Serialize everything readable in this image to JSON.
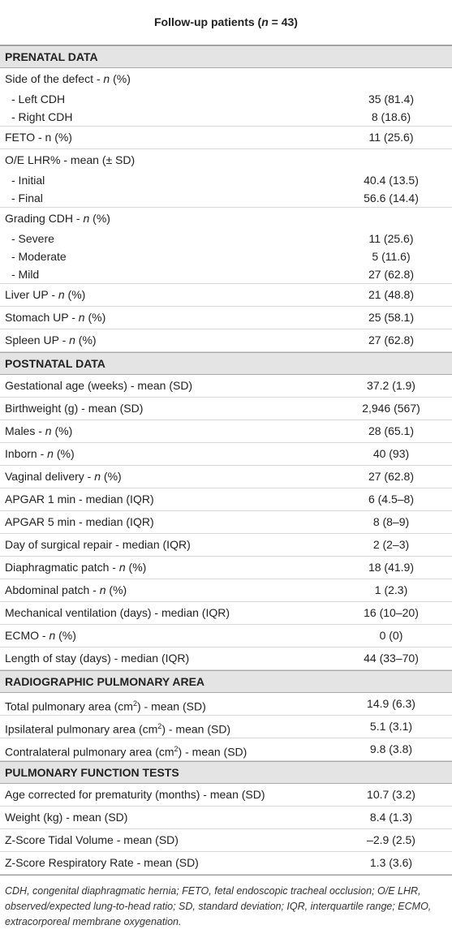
{
  "header": {
    "title": [
      "Follow-up patients (",
      {
        "italic": "n"
      },
      " = 43)"
    ]
  },
  "sections": [
    {
      "title": "PRENATAL DATA",
      "rows": [
        {
          "label": [
            "Side of the defect - ",
            {
              "italic": "n"
            },
            " (%)"
          ],
          "items": [
            {
              "label": "- Left CDH",
              "value": "35 (81.4)"
            },
            {
              "label": "- Right CDH",
              "value": "8 (18.6)"
            }
          ]
        },
        {
          "label": "FETO - n (%)",
          "value": "11 (25.6)"
        },
        {
          "label": "O/E LHR% - mean (± SD)",
          "items": [
            {
              "label": "- Initial",
              "value": "40.4 (13.5)"
            },
            {
              "label": "- Final",
              "value": "56.6 (14.4)"
            }
          ]
        },
        {
          "label": [
            "Grading CDH - ",
            {
              "italic": "n"
            },
            " (%)"
          ],
          "items": [
            {
              "label": "- Severe",
              "value": "11 (25.6)"
            },
            {
              "label": "- Moderate",
              "value": "5 (11.6)"
            },
            {
              "label": "- Mild",
              "value": "27 (62.8)"
            }
          ]
        },
        {
          "label": [
            "Liver UP - ",
            {
              "italic": "n"
            },
            " (%)"
          ],
          "value": "21 (48.8)"
        },
        {
          "label": [
            "Stomach UP - ",
            {
              "italic": "n"
            },
            " (%)"
          ],
          "value": "25 (58.1)"
        },
        {
          "label": [
            "Spleen UP - ",
            {
              "italic": "n"
            },
            " (%)"
          ],
          "value": "27 (62.8)"
        }
      ]
    },
    {
      "title": "POSTNATAL DATA",
      "rows": [
        {
          "label": "Gestational age (weeks) - mean (SD)",
          "value": "37.2 (1.9)"
        },
        {
          "label": "Birthweight (g) - mean (SD)",
          "value": "2,946 (567)"
        },
        {
          "label": [
            "Males - ",
            {
              "italic": "n"
            },
            " (%)"
          ],
          "value": "28 (65.1)"
        },
        {
          "label": [
            "Inborn - ",
            {
              "italic": "n"
            },
            " (%)"
          ],
          "value": "40 (93)"
        },
        {
          "label": [
            "Vaginal delivery - ",
            {
              "italic": "n"
            },
            " (%)"
          ],
          "value": "27 (62.8)"
        },
        {
          "label": "APGAR 1 min - median (IQR)",
          "value": "6 (4.5–8)"
        },
        {
          "label": "APGAR 5 min - median (IQR)",
          "value": "8 (8–9)"
        },
        {
          "label": "Day of surgical repair - median (IQR)",
          "value": "2 (2–3)"
        },
        {
          "label": [
            "Diaphragmatic patch - ",
            {
              "italic": "n"
            },
            " (%)"
          ],
          "value": "18 (41.9)"
        },
        {
          "label": [
            "Abdominal patch - ",
            {
              "italic": "n"
            },
            " (%)"
          ],
          "value": "1 (2.3)"
        },
        {
          "label": "Mechanical ventilation (days) - median (IQR)",
          "value": "16 (10–20)"
        },
        {
          "label": [
            "ECMO - ",
            {
              "italic": "n"
            },
            " (%)"
          ],
          "value": "0 (0)"
        },
        {
          "label": "Length of stay (days) - median (IQR)",
          "value": "44 (33–70)"
        }
      ]
    },
    {
      "title": "RADIOGRAPHIC PULMONARY AREA",
      "rows": [
        {
          "label": [
            "Total pulmonary area (cm",
            {
              "sup": "2"
            },
            ") - mean (SD)"
          ],
          "value": "14.9 (6.3)"
        },
        {
          "label": [
            "Ipsilateral pulmonary area (cm",
            {
              "sup": "2"
            },
            ") - mean (SD)"
          ],
          "value": "5.1 (3.1)"
        },
        {
          "label": [
            "Contralateral pulmonary area (cm",
            {
              "sup": "2"
            },
            ") - mean (SD)"
          ],
          "value": "9.8 (3.8)"
        }
      ]
    },
    {
      "title": "PULMONARY FUNCTION TESTS",
      "rows": [
        {
          "label": "Age corrected for prematurity (months) - mean (SD)",
          "value": "10.7 (3.2)"
        },
        {
          "label": "Weight (kg) - mean (SD)",
          "value": "8.4 (1.3)"
        },
        {
          "label": "Z-Score Tidal Volume - mean (SD)",
          "value": "–2.9 (2.5)"
        },
        {
          "label": "Z-Score Respiratory Rate - mean (SD)",
          "value": "1.3 (3.6)"
        }
      ]
    }
  ],
  "footnote": "CDH, congenital diaphragmatic hernia; FETO, fetal endoscopic tracheal occlusion; O/E LHR, observed/expected lung-to-head ratio; SD, standard deviation; IQR, interquartile range; ECMO, extracorporeal membrane oxygenation."
}
